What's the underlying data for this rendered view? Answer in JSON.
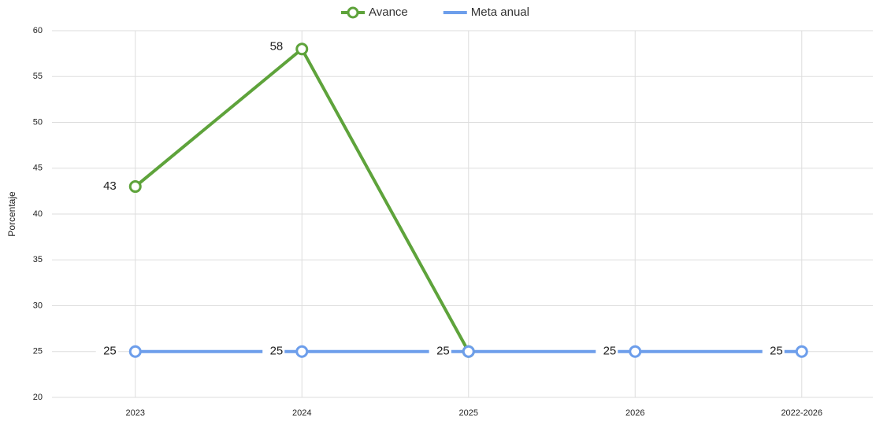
{
  "chart_data": {
    "type": "line",
    "y_label": "Porcentaje",
    "categories": [
      "2023",
      "2024",
      "2025",
      "2026",
      "2022-2026"
    ],
    "series": [
      {
        "name": "Avance",
        "color": "#5ea33b",
        "values": [
          43,
          58,
          25,
          null,
          null
        ]
      },
      {
        "name": "Meta anual",
        "color": "#6d9eeb",
        "values": [
          25,
          25,
          25,
          25,
          25
        ]
      }
    ],
    "ylim": [
      20,
      60
    ],
    "yticks": [
      20,
      25,
      30,
      35,
      40,
      45,
      50,
      55,
      60
    ],
    "grid": true,
    "legend": "top",
    "data_labels": true
  }
}
